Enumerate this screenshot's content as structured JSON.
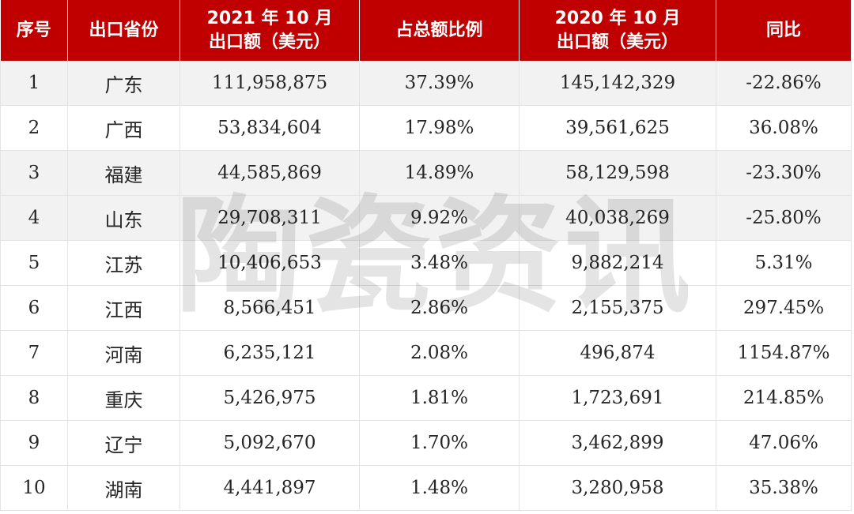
{
  "table": {
    "headers": [
      {
        "lines": [
          "序号"
        ]
      },
      {
        "lines": [
          "出口省份"
        ]
      },
      {
        "lines": [
          "2021 年 10 月",
          "出口额（美元）"
        ]
      },
      {
        "lines": [
          "占总额比例"
        ]
      },
      {
        "lines": [
          "2020 年 10 月",
          "出口额（美元）"
        ]
      },
      {
        "lines": [
          "同比"
        ]
      }
    ],
    "rows": [
      {
        "rank": "1",
        "province": "广东",
        "export_2021": "111,958,875",
        "share": "37.39%",
        "export_2020": "145,142,329",
        "yoy": "-22.86%"
      },
      {
        "rank": "2",
        "province": "广西",
        "export_2021": "53,834,604",
        "share": "17.98%",
        "export_2020": "39,561,625",
        "yoy": "36.08%"
      },
      {
        "rank": "3",
        "province": "福建",
        "export_2021": "44,585,869",
        "share": "14.89%",
        "export_2020": "58,129,598",
        "yoy": "-23.30%"
      },
      {
        "rank": "4",
        "province": "山东",
        "export_2021": "29,708,311",
        "share": "9.92%",
        "export_2020": "40,038,269",
        "yoy": "-25.80%"
      },
      {
        "rank": "5",
        "province": "江苏",
        "export_2021": "10,406,653",
        "share": "3.48%",
        "export_2020": "9,882,214",
        "yoy": "5.31%"
      },
      {
        "rank": "6",
        "province": "江西",
        "export_2021": "8,566,451",
        "share": "2.86%",
        "export_2020": "2,155,375",
        "yoy": "297.45%"
      },
      {
        "rank": "7",
        "province": "河南",
        "export_2021": "6,235,121",
        "share": "2.08%",
        "export_2020": "496,874",
        "yoy": "1154.87%"
      },
      {
        "rank": "8",
        "province": "重庆",
        "export_2021": "5,426,975",
        "share": "1.81%",
        "export_2020": "1,723,691",
        "yoy": "214.85%"
      },
      {
        "rank": "9",
        "province": "辽宁",
        "export_2021": "5,092,670",
        "share": "1.70%",
        "export_2020": "3,462,899",
        "yoy": "47.06%"
      },
      {
        "rank": "10",
        "province": "湖南",
        "export_2021": "4,441,897",
        "share": "1.48%",
        "export_2020": "3,280,958",
        "yoy": "35.38%"
      }
    ]
  },
  "watermark": {
    "text": "陶瓷资讯"
  },
  "colors": {
    "header_bg": "#c00000",
    "header_text": "#ffffff",
    "shaded_row": "#f2f2f2"
  }
}
